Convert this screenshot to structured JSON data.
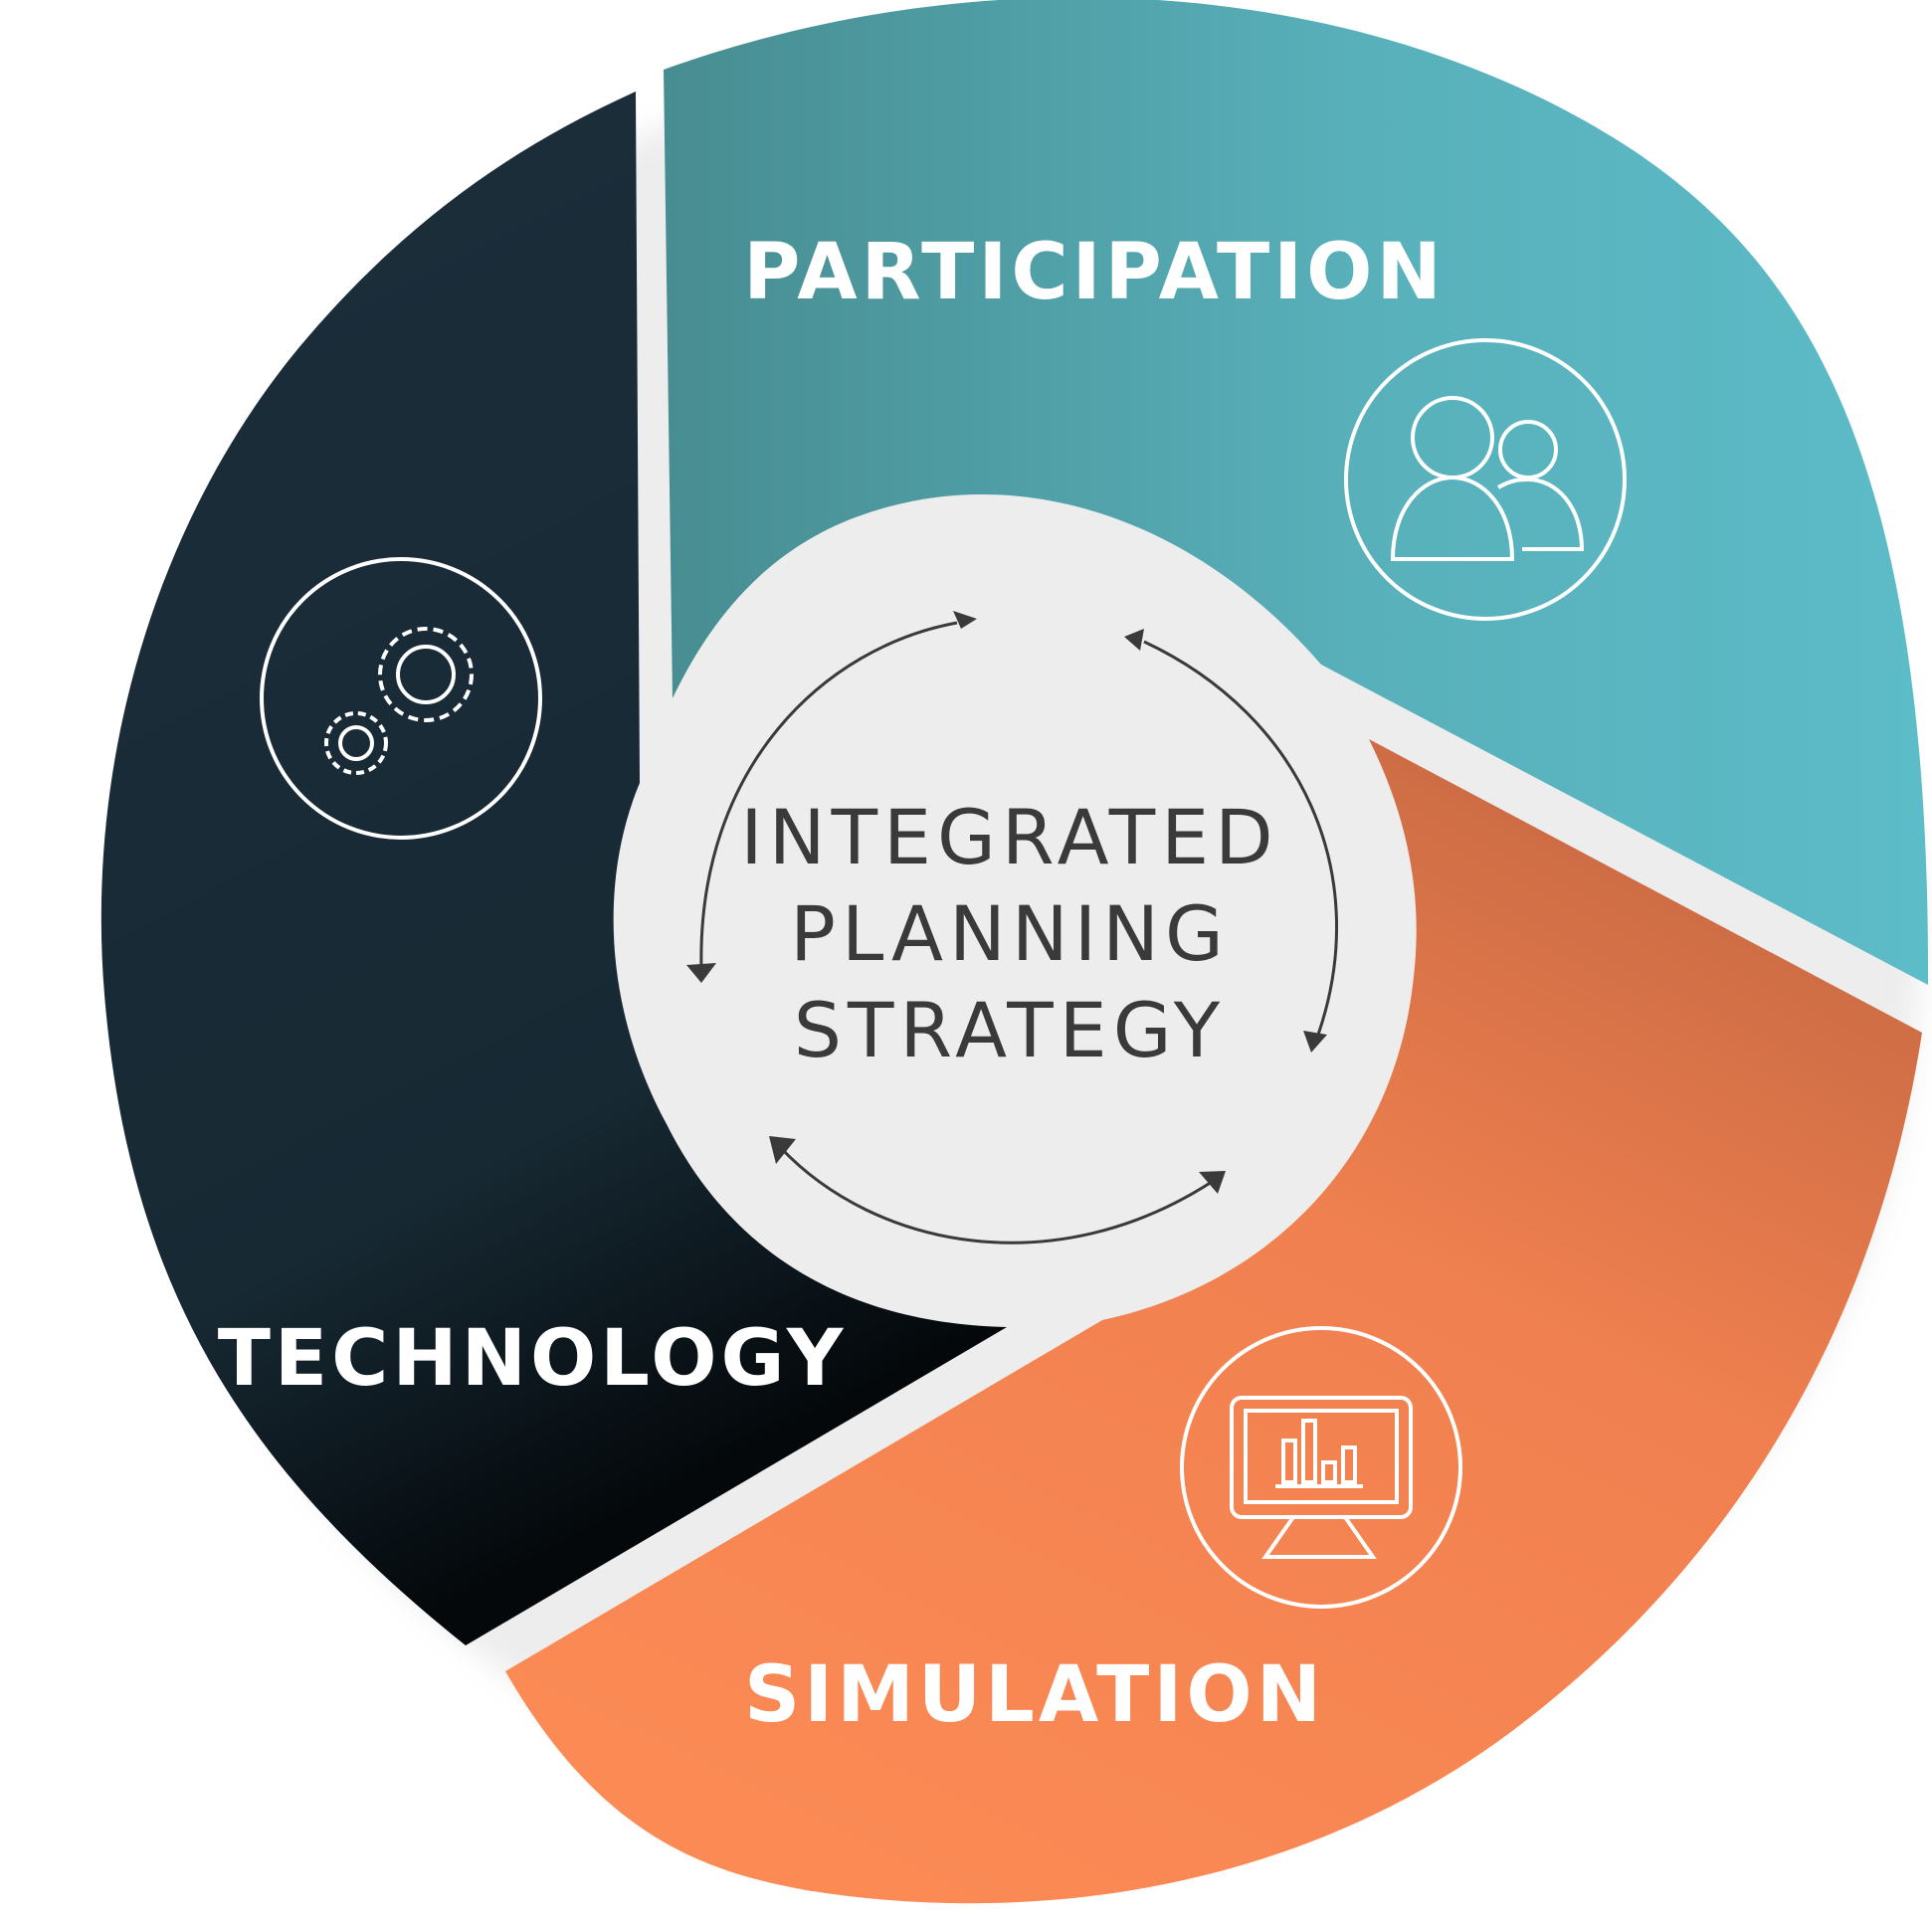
{
  "center": {
    "lines": [
      "INTEGRATED",
      "PLANNING",
      "STRATEGY"
    ]
  },
  "segments": [
    {
      "label": "PARTICIPATION",
      "icon": "people-icon",
      "color": "#58b8c4",
      "color_dark": "#478d91"
    },
    {
      "label": "SIMULATION",
      "icon": "monitor-chart-icon",
      "color": "#f98854",
      "color_dark": "#c06541"
    },
    {
      "label": "TECHNOLOGY",
      "icon": "gears-icon",
      "color": "#1b2e3b",
      "color_dark": "#05090c"
    }
  ]
}
